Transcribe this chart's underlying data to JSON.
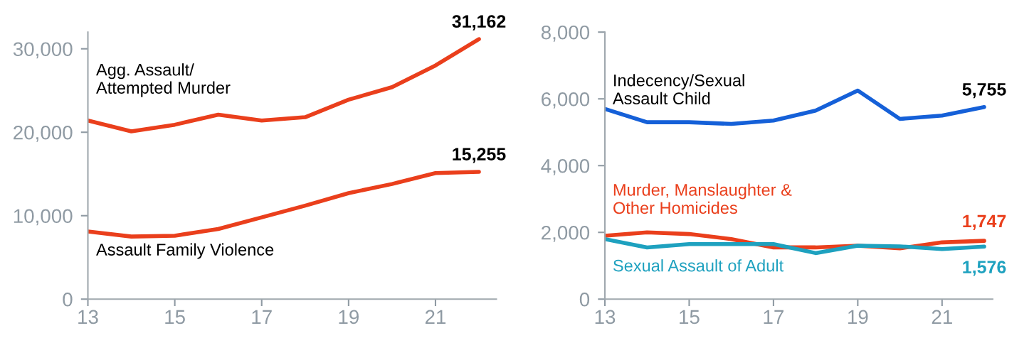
{
  "chart_data": [
    {
      "type": "line",
      "x": [
        13,
        14,
        15,
        16,
        17,
        18,
        19,
        20,
        21,
        22
      ],
      "xlim": [
        13,
        22.4
      ],
      "xticks": [
        13,
        15,
        17,
        19,
        21
      ],
      "ylim": [
        0,
        32000
      ],
      "yticks": [
        {
          "value": 0,
          "label": "0"
        },
        {
          "value": 10000,
          "label": "10,000"
        },
        {
          "value": 20000,
          "label": "20,000"
        },
        {
          "value": 30000,
          "label": "30,000"
        }
      ],
      "grid": false,
      "legend": false,
      "series": [
        {
          "name": "Agg. Assault/\nAttempted Murder",
          "color": "#ea3f1c",
          "values": [
            21400,
            20100,
            20900,
            22100,
            21400,
            21800,
            23900,
            25400,
            28000,
            31162
          ],
          "value_labels": [
            null,
            null,
            null,
            null,
            null,
            null,
            null,
            null,
            null,
            "31,162"
          ]
        },
        {
          "name": "Assault Family Violence",
          "color": "#ea3f1c",
          "values": [
            8100,
            7500,
            7600,
            8400,
            9800,
            11200,
            12700,
            13800,
            15100,
            15255
          ],
          "value_labels": [
            null,
            null,
            null,
            null,
            null,
            null,
            null,
            null,
            null,
            "15,255"
          ]
        }
      ]
    },
    {
      "type": "line",
      "x": [
        13,
        14,
        15,
        16,
        17,
        18,
        19,
        20,
        21,
        22
      ],
      "xlim": [
        13,
        22.2
      ],
      "xticks": [
        13,
        15,
        17,
        19,
        21
      ],
      "ylim": [
        0,
        8000
      ],
      "yticks": [
        {
          "value": 0,
          "label": "0"
        },
        {
          "value": 2000,
          "label": "2,000"
        },
        {
          "value": 4000,
          "label": "4,000"
        },
        {
          "value": 6000,
          "label": "6,000"
        },
        {
          "value": 8000,
          "label": "8,000"
        }
      ],
      "grid": false,
      "legend": false,
      "series": [
        {
          "name": "Indecency/Sexual\nAssault Child",
          "color": "#1560d8",
          "values": [
            5700,
            5300,
            5300,
            5250,
            5350,
            5650,
            6250,
            5400,
            5500,
            5755
          ],
          "value_labels": [
            null,
            null,
            null,
            null,
            null,
            null,
            null,
            null,
            null,
            "5,755"
          ]
        },
        {
          "name": "Murder, Manslaughter &\nOther Homicides",
          "color": "#ea3f1c",
          "values": [
            1900,
            2000,
            1950,
            1800,
            1550,
            1550,
            1600,
            1520,
            1700,
            1747
          ],
          "value_labels": [
            null,
            null,
            null,
            null,
            null,
            null,
            null,
            null,
            null,
            "1,747"
          ]
        },
        {
          "name": "Sexual Assault of Adult",
          "color": "#1ea1bf",
          "values": [
            1800,
            1550,
            1650,
            1650,
            1650,
            1380,
            1600,
            1580,
            1500,
            1576
          ],
          "value_labels": [
            null,
            null,
            null,
            null,
            null,
            null,
            null,
            null,
            null,
            "1,576"
          ]
        }
      ]
    }
  ]
}
